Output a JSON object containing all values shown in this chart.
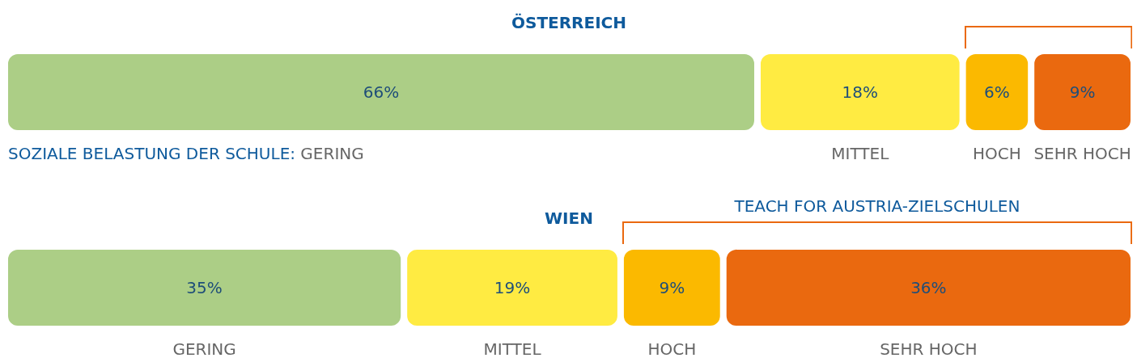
{
  "chart_data": {
    "type": "bar",
    "xlabel": "SOZIALE BELASTUNG DER SCHULE:",
    "orientation": "horizontal",
    "stacked": true,
    "categories": [
      "ÖSTERREICH",
      "WIEN"
    ],
    "annotations": [
      "TEACH FOR AUSTRIA-ZIELSCHULEN"
    ],
    "series": [
      {
        "name": "GERING",
        "color": "#acce86",
        "values": [
          66,
          35
        ],
        "value_labels": [
          "66%",
          "35%"
        ]
      },
      {
        "name": "MITTEL",
        "color": "#ffeb42",
        "values": [
          18,
          19
        ],
        "value_labels": [
          "18%",
          "19%"
        ]
      },
      {
        "name": "HOCH",
        "color": "#fbb900",
        "values": [
          6,
          9
        ],
        "value_labels": [
          "6%",
          "9%"
        ]
      },
      {
        "name": "SEHR HOCH",
        "color": "#ea690f",
        "values": [
          9,
          36
        ],
        "value_labels": [
          "9%",
          "36%"
        ]
      }
    ]
  }
}
